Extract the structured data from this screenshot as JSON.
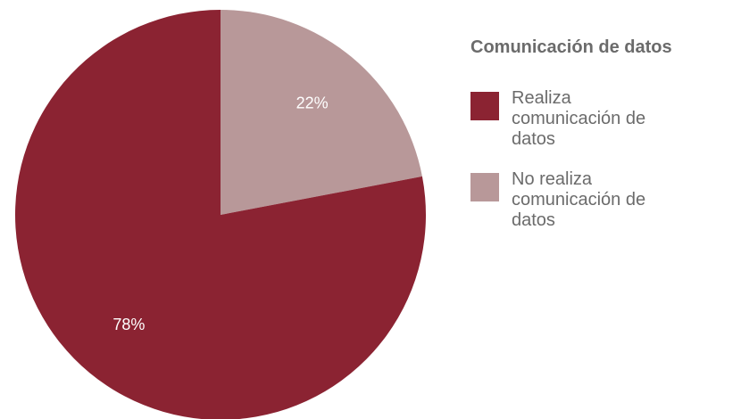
{
  "chart_data": {
    "type": "pie",
    "title": "",
    "legend_title": "Comunicación de datos",
    "legend_placement": "right",
    "slices": [
      {
        "label": "Realiza comunicación de datos",
        "value": 78,
        "value_label": "78%",
        "color": "#8b2332"
      },
      {
        "label": "No realiza comunicación de datos",
        "value": 22,
        "value_label": "22%",
        "color": "#b89899"
      }
    ]
  }
}
